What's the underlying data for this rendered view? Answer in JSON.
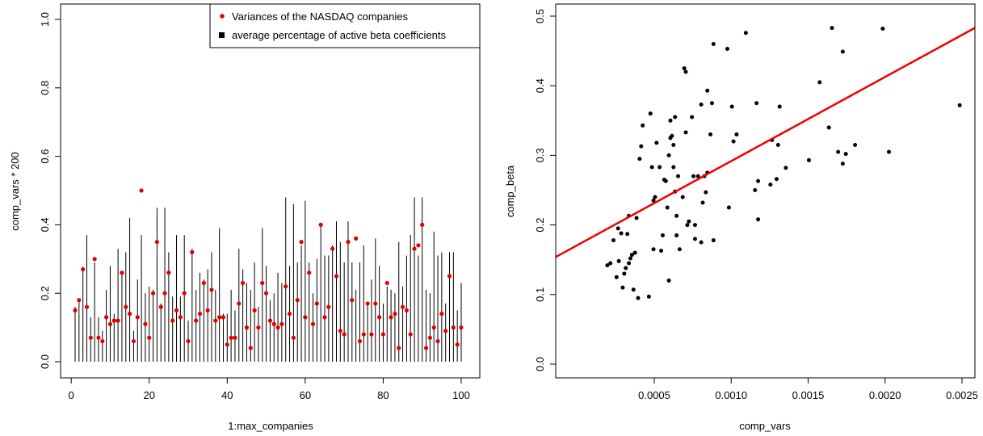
{
  "colors": {
    "variance_points": "#e00000",
    "beta_lines": "#000000",
    "scatter_points": "#000000",
    "regression_line": "#ee0000"
  },
  "chart_data": [
    {
      "type": "bar",
      "xlabel": "1:max_companies",
      "ylabel": "comp_vars * 200",
      "xlim": [
        0,
        100
      ],
      "ylim": [
        0,
        1.0
      ],
      "xticks": [
        "0",
        "20",
        "40",
        "60",
        "80",
        "100"
      ],
      "yticks": [
        "0.0",
        "0.2",
        "0.4",
        "0.6",
        "0.8",
        "1.0"
      ],
      "legend": {
        "position": "top-right",
        "entries": [
          "Variances of the NASDAQ companies",
          "average percentage of active beta coefficients"
        ]
      },
      "x": [
        1,
        2,
        3,
        4,
        5,
        6,
        7,
        8,
        9,
        10,
        11,
        12,
        13,
        14,
        15,
        16,
        17,
        18,
        19,
        20,
        21,
        22,
        23,
        24,
        25,
        26,
        27,
        28,
        29,
        30,
        31,
        32,
        33,
        34,
        35,
        36,
        37,
        38,
        39,
        40,
        41,
        42,
        43,
        44,
        45,
        46,
        47,
        48,
        49,
        50,
        51,
        52,
        53,
        54,
        55,
        56,
        57,
        58,
        59,
        60,
        61,
        62,
        63,
        64,
        65,
        66,
        67,
        68,
        69,
        70,
        71,
        72,
        73,
        74,
        75,
        76,
        77,
        78,
        79,
        80,
        81,
        82,
        83,
        84,
        85,
        86,
        87,
        88,
        89,
        90,
        91,
        92,
        93,
        94,
        95,
        96,
        97,
        98,
        99,
        100
      ],
      "series": [
        {
          "name": "Variances of the NASDAQ companies",
          "style": "points",
          "values": [
            0.15,
            0.18,
            0.27,
            0.16,
            0.07,
            0.3,
            0.07,
            0.06,
            0.13,
            0.11,
            0.12,
            0.12,
            0.26,
            0.16,
            0.14,
            0.06,
            0.13,
            0.5,
            0.11,
            0.07,
            0.2,
            0.35,
            0.16,
            0.2,
            0.26,
            0.12,
            0.15,
            0.13,
            0.2,
            0.06,
            0.32,
            0.12,
            0.14,
            0.23,
            0.15,
            0.21,
            0.12,
            0.13,
            0.13,
            0.05,
            0.07,
            0.07,
            0.17,
            0.23,
            0.1,
            0.04,
            0.15,
            0.1,
            0.23,
            0.2,
            0.12,
            0.11,
            0.1,
            0.11,
            0.22,
            0.14,
            0.07,
            0.18,
            0.35,
            0.13,
            0.26,
            0.11,
            0.17,
            0.4,
            0.13,
            0.16,
            0.33,
            0.25,
            0.09,
            0.08,
            0.35,
            0.18,
            0.36,
            0.06,
            0.08,
            0.17,
            0.08,
            0.17,
            0.13,
            0.08,
            0.23,
            0.13,
            0.14,
            0.04,
            0.16,
            0.15,
            0.08,
            0.33,
            0.34,
            0.4,
            0.04,
            0.07,
            0.1,
            0.06,
            0.14,
            0.09,
            0.25,
            0.1,
            0.05,
            0.1
          ]
        },
        {
          "name": "average percentage of active beta coefficients",
          "style": "vertical-lines",
          "values": [
            0.16,
            0.18,
            0.27,
            0.37,
            0.13,
            0.29,
            0.13,
            0.09,
            0.21,
            0.28,
            0.14,
            0.33,
            0.26,
            0.32,
            0.42,
            0.09,
            0.24,
            0.37,
            0.2,
            0.22,
            0.21,
            0.45,
            0.17,
            0.45,
            0.32,
            0.19,
            0.37,
            0.19,
            0.37,
            0.12,
            0.33,
            0.21,
            0.26,
            0.24,
            0.27,
            0.32,
            0.21,
            0.39,
            0.14,
            0.14,
            0.21,
            0.15,
            0.33,
            0.27,
            0.23,
            0.21,
            0.29,
            0.16,
            0.39,
            0.28,
            0.18,
            0.2,
            0.26,
            0.23,
            0.48,
            0.28,
            0.46,
            0.29,
            0.34,
            0.47,
            0.29,
            0.2,
            0.3,
            0.4,
            0.31,
            0.31,
            0.34,
            0.41,
            0.35,
            0.29,
            0.41,
            0.29,
            0.21,
            0.29,
            0.34,
            0.17,
            0.24,
            0.36,
            0.28,
            0.17,
            0.22,
            0.21,
            0.2,
            0.35,
            0.22,
            0.31,
            0.37,
            0.48,
            0.31,
            0.48,
            0.21,
            0.2,
            0.38,
            0.31,
            0.32,
            0.17,
            0.32,
            0.32,
            0.15,
            0.23
          ]
        }
      ]
    },
    {
      "type": "scatter",
      "xlabel": "comp_vars",
      "ylabel": "comp_beta",
      "xlim": [
        0.000125,
        0.0025
      ],
      "ylim": [
        0,
        0.5
      ],
      "xticks": [
        "0.0005",
        "0.0010",
        "0.0015",
        "0.0020",
        "0.0025"
      ],
      "yticks": [
        "0.0",
        "0.1",
        "0.2",
        "0.3",
        "0.4",
        "0.5"
      ],
      "points": [
        [
          0.000195,
          0.142
        ],
        [
          0.000215,
          0.145
        ],
        [
          0.000235,
          0.178
        ],
        [
          0.000255,
          0.125
        ],
        [
          0.000265,
          0.195
        ],
        [
          0.00027,
          0.148
        ],
        [
          0.000285,
          0.188
        ],
        [
          0.000295,
          0.11
        ],
        [
          0.000305,
          0.13
        ],
        [
          0.000315,
          0.138
        ],
        [
          0.000325,
          0.187
        ],
        [
          0.000335,
          0.145
        ],
        [
          0.000335,
          0.213
        ],
        [
          0.000345,
          0.152
        ],
        [
          0.000355,
          0.157
        ],
        [
          0.000365,
          0.107
        ],
        [
          0.000375,
          0.16
        ],
        [
          0.000385,
          0.21
        ],
        [
          0.000395,
          0.095
        ],
        [
          0.000405,
          0.295
        ],
        [
          0.000415,
          0.313
        ],
        [
          0.000425,
          0.343
        ],
        [
          0.000465,
          0.097
        ],
        [
          0.000475,
          0.36
        ],
        [
          0.000485,
          0.283
        ],
        [
          0.000495,
          0.165
        ],
        [
          0.000495,
          0.235
        ],
        [
          0.000505,
          0.24
        ],
        [
          0.000515,
          0.318
        ],
        [
          0.000535,
          0.283
        ],
        [
          0.000545,
          0.163
        ],
        [
          0.000555,
          0.185
        ],
        [
          0.000565,
          0.265
        ],
        [
          0.000575,
          0.263
        ],
        [
          0.000585,
          0.225
        ],
        [
          0.000595,
          0.12
        ],
        [
          0.000595,
          0.3
        ],
        [
          0.000605,
          0.35
        ],
        [
          0.000605,
          0.325
        ],
        [
          0.000615,
          0.328
        ],
        [
          0.000625,
          0.315
        ],
        [
          0.000625,
          0.283
        ],
        [
          0.000635,
          0.355
        ],
        [
          0.000635,
          0.248
        ],
        [
          0.000645,
          0.213
        ],
        [
          0.000645,
          0.185
        ],
        [
          0.000655,
          0.27
        ],
        [
          0.000665,
          0.165
        ],
        [
          0.000685,
          0.24
        ],
        [
          0.000695,
          0.425
        ],
        [
          0.000705,
          0.42
        ],
        [
          0.000705,
          0.333
        ],
        [
          0.000715,
          0.2
        ],
        [
          0.000725,
          0.205
        ],
        [
          0.000745,
          0.355
        ],
        [
          0.000755,
          0.27
        ],
        [
          0.000765,
          0.2
        ],
        [
          0.000765,
          0.18
        ],
        [
          0.000785,
          0.27
        ],
        [
          0.000805,
          0.373
        ],
        [
          0.000805,
          0.175
        ],
        [
          0.000815,
          0.232
        ],
        [
          0.000825,
          0.27
        ],
        [
          0.000835,
          0.247
        ],
        [
          0.000845,
          0.275
        ],
        [
          0.000845,
          0.393
        ],
        [
          0.000865,
          0.33
        ],
        [
          0.000875,
          0.375
        ],
        [
          0.000885,
          0.46
        ],
        [
          0.000885,
          0.178
        ],
        [
          0.000975,
          0.453
        ],
        [
          0.000985,
          0.225
        ],
        [
          0.001005,
          0.37
        ],
        [
          0.001015,
          0.32
        ],
        [
          0.001035,
          0.33
        ],
        [
          0.001095,
          0.476
        ],
        [
          0.001155,
          0.25
        ],
        [
          0.001165,
          0.375
        ],
        [
          0.001175,
          0.263
        ],
        [
          0.001175,
          0.208
        ],
        [
          0.001255,
          0.258
        ],
        [
          0.001265,
          0.322
        ],
        [
          0.001295,
          0.266
        ],
        [
          0.001305,
          0.315
        ],
        [
          0.001315,
          0.37
        ],
        [
          0.001355,
          0.282
        ],
        [
          0.001505,
          0.293
        ],
        [
          0.001575,
          0.405
        ],
        [
          0.001635,
          0.34
        ],
        [
          0.001655,
          0.483
        ],
        [
          0.001695,
          0.305
        ],
        [
          0.001725,
          0.449
        ],
        [
          0.001725,
          0.288
        ],
        [
          0.001745,
          0.302
        ],
        [
          0.001805,
          0.315
        ],
        [
          0.001985,
          0.482
        ],
        [
          0.002025,
          0.305
        ],
        [
          0.002485,
          0.372
        ]
      ],
      "regression_line": {
        "x": [
          0.000125,
          0.0025
        ],
        "y": [
          0.186,
          0.473
        ]
      }
    }
  ]
}
